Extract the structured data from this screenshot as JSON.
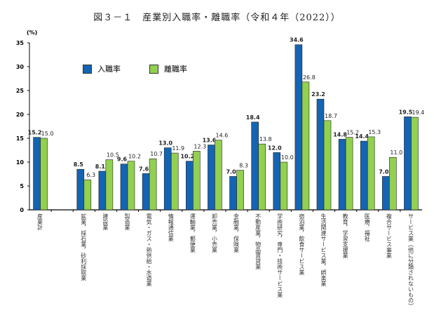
{
  "title": "図３－１　産業別入職率・離職率（令和４年（2022））",
  "colors": {
    "entry": "#1464b4",
    "exit": "#92d050"
  },
  "chart_data": {
    "type": "bar",
    "unit_label": "(%)",
    "ylim": [
      0,
      35
    ],
    "yticks": [
      0,
      5,
      10,
      15,
      20,
      25,
      30,
      35
    ],
    "grid": false,
    "legend_position": "top-left",
    "categories": [
      "産業計",
      "",
      "鉱業，採石業，砂利採取業",
      "建設業",
      "製造業",
      "電気・ガス・熱供給・水道業",
      "情報通信業",
      "運輸業，郵便業",
      "卸売業，小売業",
      "金融業，保険業",
      "不動産業，物品賃貸業",
      "学術研究，専門・技術サービス業",
      "宿泊業，飲食サービス業",
      "生活関連サービス業，娯楽業",
      "教育，学習支援業",
      "医療，福祉",
      "複合サービス事業",
      "サービス業（他に分類されないもの）"
    ],
    "series": [
      {
        "name": "入職率",
        "values": [
          15.2,
          null,
          8.5,
          8.1,
          9.6,
          7.6,
          13.0,
          10.2,
          13.6,
          7.0,
          18.4,
          12.0,
          34.6,
          23.2,
          14.8,
          14.4,
          7.0,
          19.5
        ]
      },
      {
        "name": "離職率",
        "values": [
          15.0,
          null,
          6.3,
          10.5,
          10.2,
          10.7,
          11.9,
          12.3,
          14.6,
          8.3,
          13.8,
          10.0,
          26.8,
          18.7,
          15.2,
          15.3,
          11.0,
          19.4
        ]
      }
    ]
  }
}
